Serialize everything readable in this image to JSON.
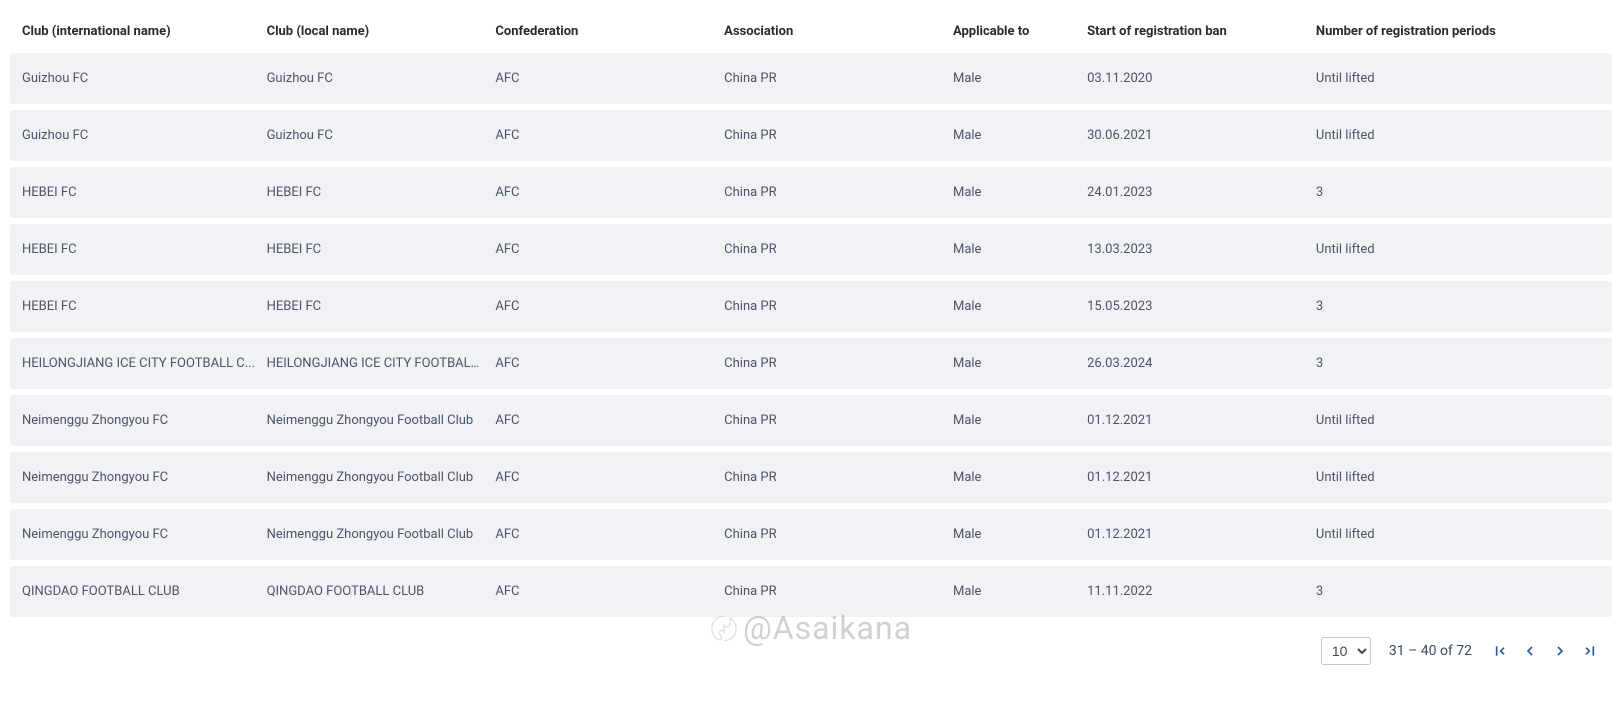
{
  "table": {
    "columns": [
      "Club (international name)",
      "Club (local name)",
      "Confederation",
      "Association",
      "Applicable to",
      "Start of registration ban",
      "Number of registration periods"
    ],
    "rows": [
      [
        "Guizhou FC",
        "Guizhou FC",
        "AFC",
        "China PR",
        "Male",
        "03.11.2020",
        "Until lifted"
      ],
      [
        "Guizhou FC",
        "Guizhou FC",
        "AFC",
        "China PR",
        "Male",
        "30.06.2021",
        "Until lifted"
      ],
      [
        "HEBEI FC",
        "HEBEI FC",
        "AFC",
        "China PR",
        "Male",
        "24.01.2023",
        "3"
      ],
      [
        "HEBEI FC",
        "HEBEI FC",
        "AFC",
        "China PR",
        "Male",
        "13.03.2023",
        "Until lifted"
      ],
      [
        "HEBEI FC",
        "HEBEI FC",
        "AFC",
        "China PR",
        "Male",
        "15.05.2023",
        "3"
      ],
      [
        "HEILONGJIANG ICE CITY FOOTBALL C...",
        "HEILONGJIANG ICE CITY FOOTBALL C...",
        "AFC",
        "China PR",
        "Male",
        "26.03.2024",
        "3"
      ],
      [
        "Neimenggu Zhongyou FC",
        "Neimenggu Zhongyou Football Club",
        "AFC",
        "China PR",
        "Male",
        "01.12.2021",
        "Until lifted"
      ],
      [
        "Neimenggu Zhongyou FC",
        "Neimenggu Zhongyou Football Club",
        "AFC",
        "China PR",
        "Male",
        "01.12.2021",
        "Until lifted"
      ],
      [
        "Neimenggu Zhongyou FC",
        "Neimenggu Zhongyou Football Club",
        "AFC",
        "China PR",
        "Male",
        "01.12.2021",
        "Until lifted"
      ],
      [
        "QINGDAO FOOTBALL CLUB",
        "QINGDAO FOOTBALL CLUB",
        "AFC",
        "China PR",
        "Male",
        "11.11.2022",
        "3"
      ]
    ]
  },
  "pagination": {
    "page_size": "10",
    "range_text": "31 – 40 of 72"
  },
  "watermark": {
    "text": "@Asaikana"
  },
  "colors": {
    "row_bg": "#f0f2f5",
    "text": "#4a5568",
    "header_text": "#2a2a2a",
    "accent": "#2a5a9a"
  }
}
